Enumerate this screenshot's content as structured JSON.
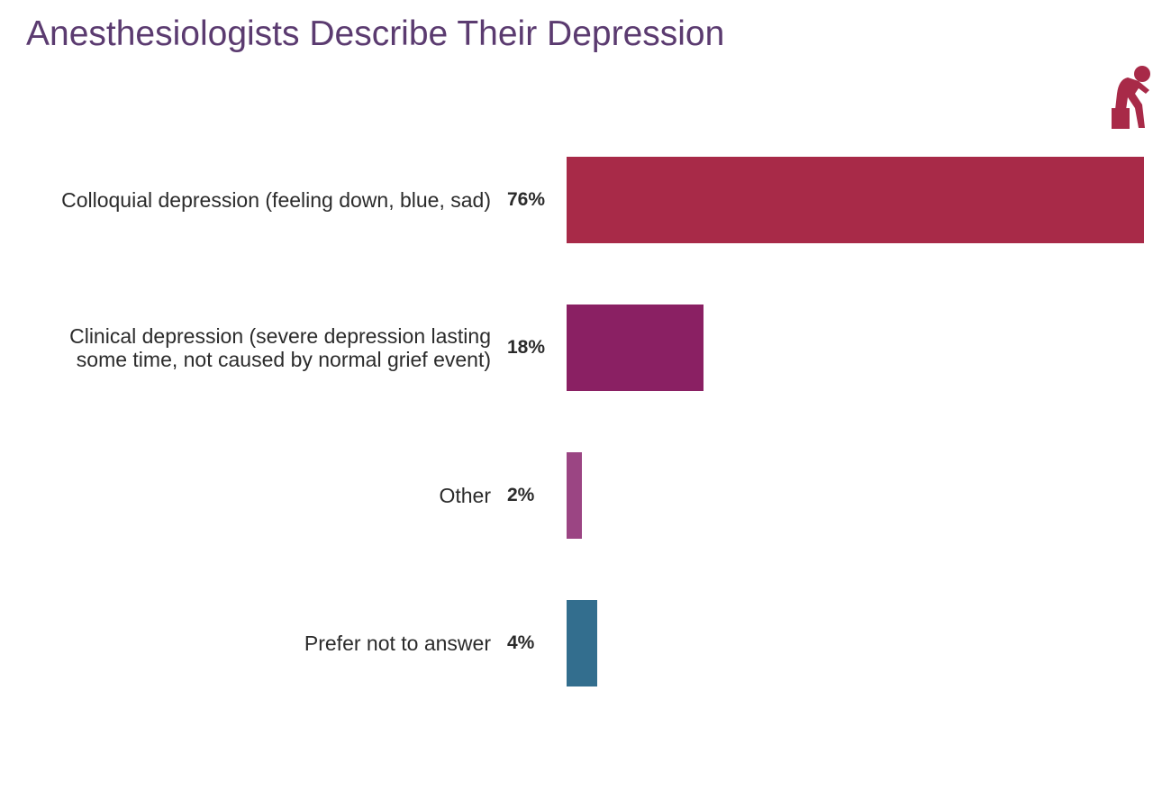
{
  "chart_data": {
    "type": "hbar",
    "title": "Anesthesiologists Describe Their Depression",
    "categories": [
      "Colloquial depression (feeling down, blue, sad)",
      "Clinical depression (severe depression lasting some time, not caused by normal grief event)",
      "Other",
      "Prefer not to answer"
    ],
    "values": [
      76,
      18,
      2,
      4
    ],
    "value_labels": [
      "76%",
      "18%",
      "2%",
      "4%"
    ],
    "colors": [
      "#a82a48",
      "#8a2063",
      "#9b4583",
      "#336e8e"
    ]
  }
}
